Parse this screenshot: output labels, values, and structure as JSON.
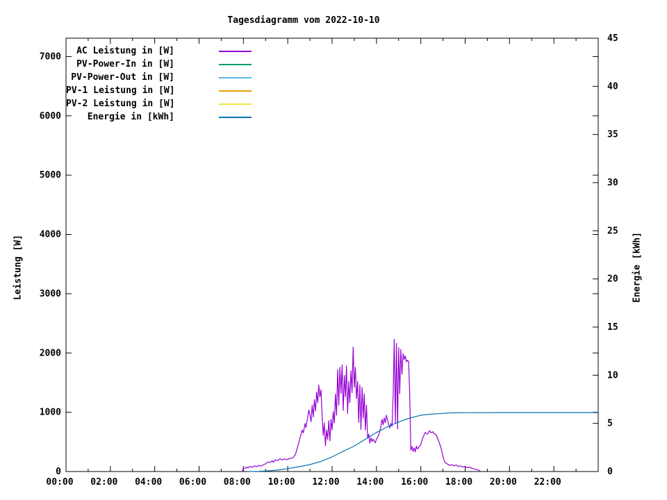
{
  "page": {
    "background": "#ffffff"
  },
  "chart_data": {
    "type": "line",
    "title": "Tagesdiagramm vom 2022-10-10",
    "grid": false,
    "legend_position": "top-left-inside",
    "x_axis": {
      "kind": "time-of-day",
      "range_hours": [
        0,
        24
      ],
      "major_tick_every_hours": 2,
      "minor_tick_every_hours": 1,
      "tick_labels": [
        "00:00",
        "02:00",
        "04:00",
        "06:00",
        "08:00",
        "10:00",
        "12:00",
        "14:00",
        "16:00",
        "18:00",
        "20:00",
        "22:00"
      ]
    },
    "y_left": {
      "label": "Leistung [W]",
      "range": [
        0,
        7310
      ],
      "ticks": [
        0,
        1000,
        2000,
        3000,
        4000,
        5000,
        6000,
        7000
      ]
    },
    "y_right": {
      "label": "Energie [kWh]",
      "range": [
        0,
        45
      ],
      "ticks": [
        0,
        5,
        10,
        15,
        20,
        25,
        30,
        35,
        40,
        45
      ]
    },
    "series": [
      {
        "name": "AC Leistung in [W]",
        "color": "#9400d3",
        "axis": "left",
        "points": [
          [
            7.95,
            0
          ],
          [
            8.0,
            60
          ],
          [
            8.08,
            55
          ],
          [
            8.15,
            75
          ],
          [
            8.2,
            60
          ],
          [
            8.3,
            85
          ],
          [
            8.4,
            70
          ],
          [
            8.5,
            95
          ],
          [
            8.6,
            80
          ],
          [
            8.7,
            105
          ],
          [
            8.8,
            90
          ],
          [
            8.9,
            115
          ],
          [
            9.0,
            130
          ],
          [
            9.1,
            160
          ],
          [
            9.2,
            150
          ],
          [
            9.3,
            185
          ],
          [
            9.35,
            155
          ],
          [
            9.45,
            200
          ],
          [
            9.55,
            185
          ],
          [
            9.65,
            215
          ],
          [
            9.75,
            195
          ],
          [
            9.85,
            215
          ],
          [
            9.95,
            200
          ],
          [
            10.05,
            215
          ],
          [
            10.15,
            225
          ],
          [
            10.25,
            235
          ],
          [
            10.35,
            290
          ],
          [
            10.45,
            420
          ],
          [
            10.55,
            560
          ],
          [
            10.65,
            700
          ],
          [
            10.7,
            650
          ],
          [
            10.78,
            810
          ],
          [
            10.82,
            740
          ],
          [
            10.9,
            920
          ],
          [
            10.95,
            1040
          ],
          [
            11.0,
            950
          ],
          [
            11.05,
            840
          ],
          [
            11.1,
            1120
          ],
          [
            11.15,
            920
          ],
          [
            11.2,
            1210
          ],
          [
            11.25,
            1020
          ],
          [
            11.3,
            1340
          ],
          [
            11.35,
            1160
          ],
          [
            11.4,
            1460
          ],
          [
            11.45,
            1260
          ],
          [
            11.5,
            1380
          ],
          [
            11.55,
            950
          ],
          [
            11.6,
            610
          ],
          [
            11.65,
            820
          ],
          [
            11.7,
            435
          ],
          [
            11.75,
            700
          ],
          [
            11.8,
            545
          ],
          [
            11.85,
            860
          ],
          [
            11.9,
            515
          ],
          [
            11.95,
            880
          ],
          [
            12.0,
            700
          ],
          [
            12.05,
            1010
          ],
          [
            12.1,
            820
          ],
          [
            12.15,
            1310
          ],
          [
            12.2,
            950
          ],
          [
            12.25,
            1720
          ],
          [
            12.3,
            1120
          ],
          [
            12.35,
            1760
          ],
          [
            12.4,
            1320
          ],
          [
            12.45,
            1800
          ],
          [
            12.5,
            1030
          ],
          [
            12.55,
            1620
          ],
          [
            12.6,
            1260
          ],
          [
            12.65,
            1780
          ],
          [
            12.7,
            980
          ],
          [
            12.75,
            1520
          ],
          [
            12.8,
            1160
          ],
          [
            12.85,
            1700
          ],
          [
            12.9,
            1330
          ],
          [
            12.95,
            2100
          ],
          [
            13.0,
            1420
          ],
          [
            13.05,
            1760
          ],
          [
            13.1,
            1230
          ],
          [
            13.15,
            1520
          ],
          [
            13.2,
            830
          ],
          [
            13.25,
            1460
          ],
          [
            13.3,
            710
          ],
          [
            13.35,
            1420
          ],
          [
            13.4,
            900
          ],
          [
            13.45,
            1310
          ],
          [
            13.5,
            700
          ],
          [
            13.55,
            1120
          ],
          [
            13.6,
            560
          ],
          [
            13.65,
            630
          ],
          [
            13.7,
            480
          ],
          [
            13.75,
            570
          ],
          [
            13.8,
            505
          ],
          [
            13.85,
            545
          ],
          [
            13.9,
            520
          ],
          [
            13.95,
            485
          ],
          [
            14.0,
            545
          ],
          [
            14.1,
            610
          ],
          [
            14.2,
            760
          ],
          [
            14.25,
            880
          ],
          [
            14.3,
            790
          ],
          [
            14.35,
            905
          ],
          [
            14.4,
            825
          ],
          [
            14.45,
            950
          ],
          [
            14.5,
            870
          ],
          [
            14.55,
            790
          ],
          [
            14.6,
            735
          ],
          [
            14.65,
            810
          ],
          [
            14.7,
            760
          ],
          [
            14.75,
            1250
          ],
          [
            14.8,
            2230
          ],
          [
            14.85,
            820
          ],
          [
            14.9,
            2160
          ],
          [
            14.95,
            720
          ],
          [
            15.0,
            2090
          ],
          [
            15.05,
            1310
          ],
          [
            15.1,
            2060
          ],
          [
            15.15,
            1640
          ],
          [
            15.2,
            1990
          ],
          [
            15.25,
            1890
          ],
          [
            15.3,
            1950
          ],
          [
            15.35,
            1850
          ],
          [
            15.4,
            1880
          ],
          [
            15.45,
            1855
          ],
          [
            15.5,
            1300
          ],
          [
            15.55,
            360
          ],
          [
            15.6,
            420
          ],
          [
            15.65,
            340
          ],
          [
            15.7,
            400
          ],
          [
            15.75,
            330
          ],
          [
            15.8,
            430
          ],
          [
            15.85,
            380
          ],
          [
            15.9,
            405
          ],
          [
            15.95,
            430
          ],
          [
            16.0,
            460
          ],
          [
            16.1,
            580
          ],
          [
            16.2,
            660
          ],
          [
            16.3,
            630
          ],
          [
            16.4,
            690
          ],
          [
            16.45,
            655
          ],
          [
            16.55,
            670
          ],
          [
            16.6,
            640
          ],
          [
            16.7,
            615
          ],
          [
            16.8,
            520
          ],
          [
            16.9,
            410
          ],
          [
            17.0,
            260
          ],
          [
            17.05,
            190
          ],
          [
            17.1,
            150
          ],
          [
            17.2,
            125
          ],
          [
            17.3,
            105
          ],
          [
            17.4,
            115
          ],
          [
            17.5,
            95
          ],
          [
            17.6,
            110
          ],
          [
            17.7,
            85
          ],
          [
            17.8,
            95
          ],
          [
            17.9,
            75
          ],
          [
            18.0,
            85
          ],
          [
            18.1,
            65
          ],
          [
            18.2,
            75
          ],
          [
            18.3,
            55
          ],
          [
            18.4,
            45
          ],
          [
            18.5,
            35
          ],
          [
            18.6,
            25
          ],
          [
            18.7,
            0
          ]
        ]
      },
      {
        "name": "PV-Power-In in [W]",
        "color": "#009e73",
        "axis": "left",
        "points": []
      },
      {
        "name": "PV-Power-Out in [W]",
        "color": "#56b4e9",
        "axis": "left",
        "points": []
      },
      {
        "name": "PV-1 Leistung in [W]",
        "color": "#e69f00",
        "axis": "left",
        "points": []
      },
      {
        "name": "PV-2 Leistung in [W]",
        "color": "#f0e442",
        "axis": "left",
        "points": []
      },
      {
        "name": "Energie in [kWh]",
        "color": "#0072b2",
        "axis": "right",
        "points": [
          [
            8.2,
            0
          ],
          [
            8.7,
            0.02
          ],
          [
            9.0,
            0.06
          ],
          [
            9.5,
            0.14
          ],
          [
            10.0,
            0.3
          ],
          [
            10.5,
            0.5
          ],
          [
            11.0,
            0.72
          ],
          [
            11.5,
            1.05
          ],
          [
            12.0,
            1.52
          ],
          [
            12.5,
            2.1
          ],
          [
            13.0,
            2.65
          ],
          [
            13.5,
            3.35
          ],
          [
            14.0,
            4.05
          ],
          [
            14.5,
            4.65
          ],
          [
            15.0,
            5.15
          ],
          [
            15.5,
            5.55
          ],
          [
            16.0,
            5.85
          ],
          [
            16.4,
            5.95
          ],
          [
            16.8,
            6.0
          ],
          [
            17.2,
            6.07
          ],
          [
            17.6,
            6.1
          ],
          [
            18.0,
            6.11
          ],
          [
            20.0,
            6.12
          ],
          [
            24.0,
            6.12
          ]
        ]
      }
    ]
  }
}
